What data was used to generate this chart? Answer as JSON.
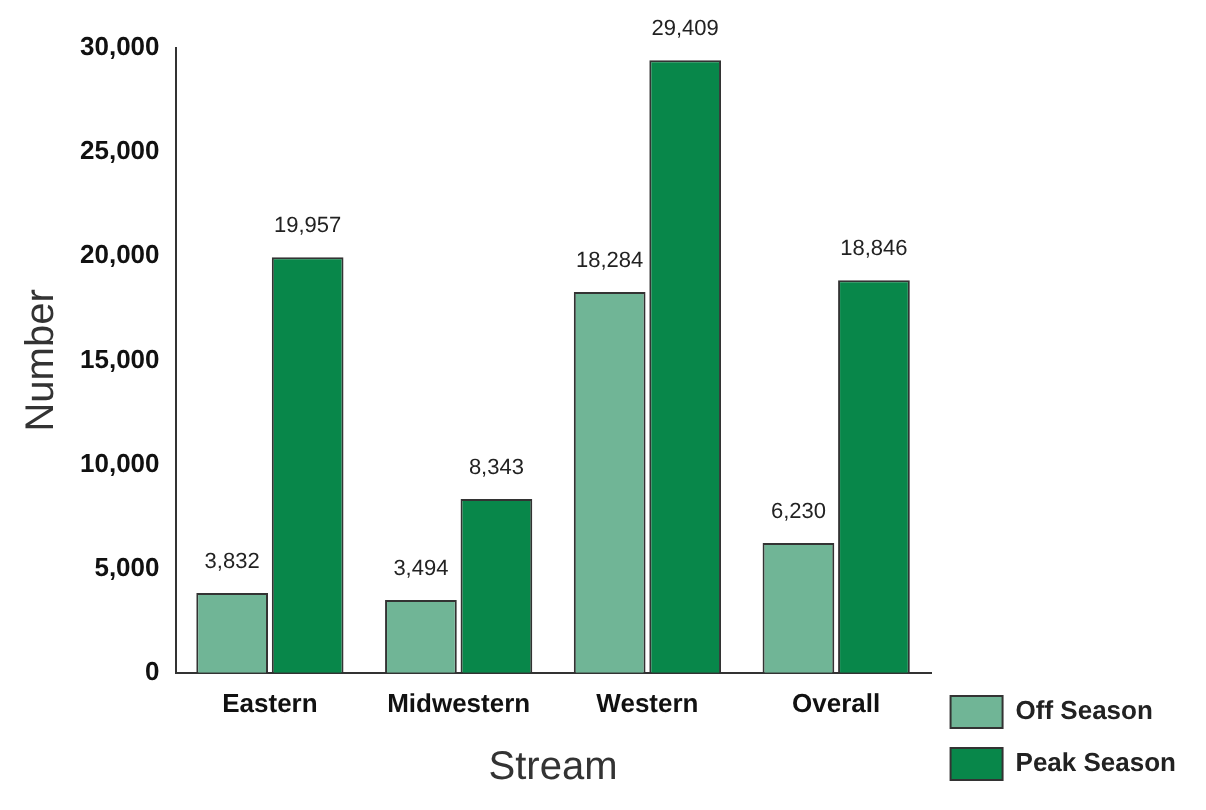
{
  "chart_data": {
    "type": "bar",
    "xlabel": "Stream",
    "ylabel": "Number",
    "categories": [
      "Eastern",
      "Midwestern",
      "Western",
      "Overall"
    ],
    "series": [
      {
        "name": "Off Season",
        "color": "#70b596",
        "values": [
          3832,
          3494,
          18284,
          6230
        ],
        "value_labels": [
          "3,832",
          "3,494",
          "18,284",
          "6,230"
        ]
      },
      {
        "name": "Peak Season",
        "color": "#08874a",
        "values": [
          19957,
          8343,
          29409,
          18846
        ],
        "value_labels": [
          "19,957",
          "8,343",
          "29,409",
          "18,846"
        ]
      }
    ],
    "ylim": [
      0,
      30000
    ],
    "yticks": [
      {
        "value": 0,
        "label": "0"
      },
      {
        "value": 5000,
        "label": "5,000"
      },
      {
        "value": 10000,
        "label": "10,000"
      },
      {
        "value": 15000,
        "label": "15,000"
      },
      {
        "value": 20000,
        "label": "20,000"
      },
      {
        "value": 25000,
        "label": "25,000"
      },
      {
        "value": 30000,
        "label": "30,000"
      }
    ],
    "grid": false,
    "legend": "bottom right"
  }
}
